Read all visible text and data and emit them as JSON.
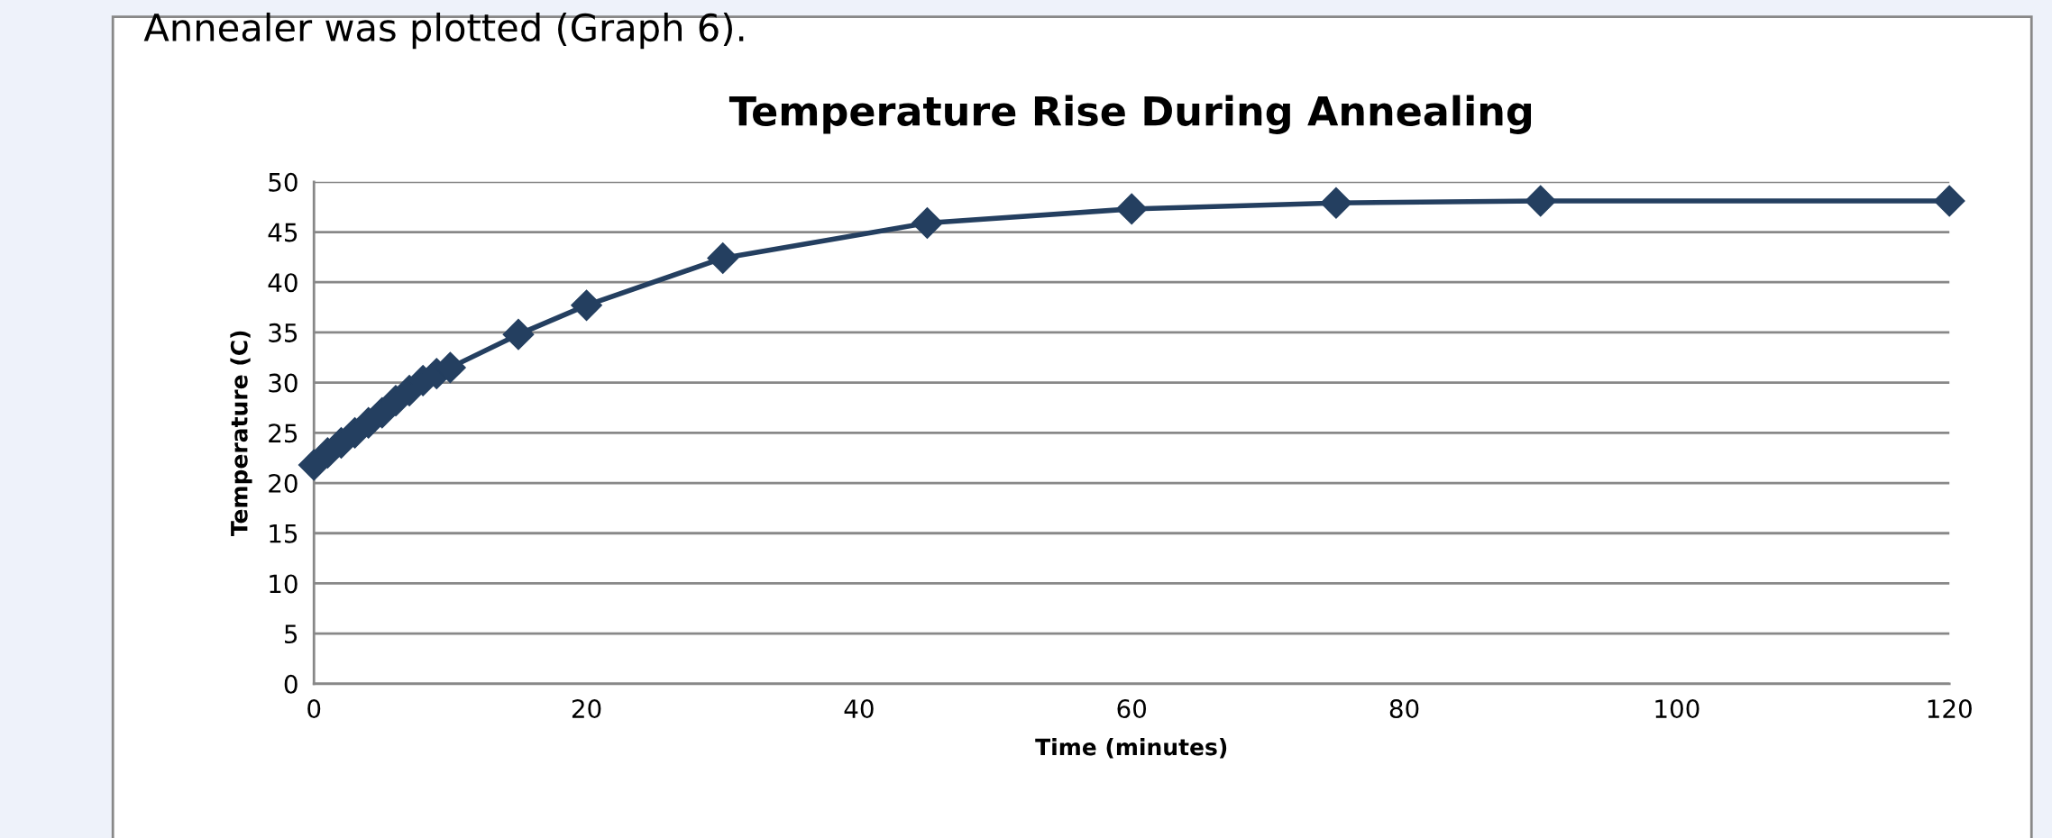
{
  "chart_data": {
    "type": "line",
    "title": "Temperature Rise During Annealing",
    "xlabel": "Time (minutes)",
    "ylabel": "Temperature (C)",
    "annotations": [
      "Annealer was plotted (Graph 6)."
    ],
    "x": [
      0,
      1,
      2,
      3,
      4,
      5,
      6,
      7,
      8,
      9,
      10,
      15,
      20,
      30,
      45,
      60,
      75,
      90,
      120
    ],
    "series": [
      {
        "color": "#243f60",
        "values": [
          21.8,
          23,
          24,
          25,
          26,
          27,
          28.2,
          29.2,
          30.2,
          30.9,
          31.5,
          34.8,
          37.7,
          42.4,
          45.9,
          47.3,
          47.9,
          48.1,
          48.1
        ]
      }
    ],
    "xlim": [
      0,
      120
    ],
    "xticks": [
      0,
      20,
      40,
      60,
      80,
      100,
      120
    ],
    "ylim": [
      0,
      50
    ],
    "yticks": [
      0,
      5,
      10,
      15,
      20,
      25,
      30,
      35,
      40,
      45,
      50
    ],
    "grid": "y",
    "marker": "diamond",
    "line_style": "solid",
    "legend": false
  }
}
